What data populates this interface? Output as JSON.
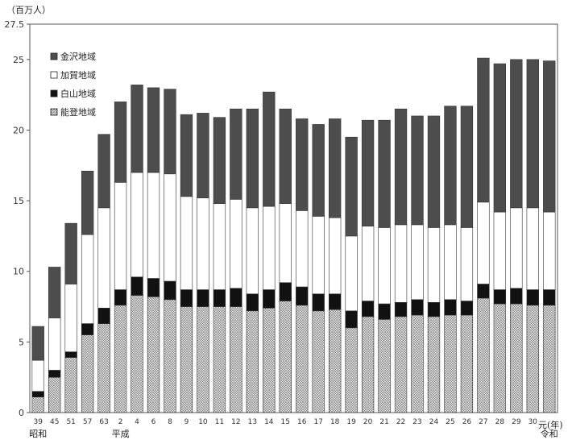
{
  "chart_data": {
    "type": "bar",
    "stacked": true,
    "y_unit_label": "（百万人）",
    "x_unit_label": "元(年)",
    "ylim": [
      0,
      27.5
    ],
    "y_ticks": [
      "0",
      "5",
      "10",
      "15",
      "20",
      "25",
      "27.5"
    ],
    "grid": false,
    "legend_position": "top-left",
    "era_labels": [
      {
        "text": "昭和",
        "category_index": 0
      },
      {
        "text": "平成",
        "category_index": 5
      },
      {
        "text": "令和",
        "category_index": 31
      }
    ],
    "categories": [
      "39",
      "45",
      "51",
      "57",
      "63",
      "2",
      "4",
      "6",
      "8",
      "9",
      "10",
      "11",
      "12",
      "13",
      "14",
      "15",
      "16",
      "17",
      "18",
      "19",
      "20",
      "21",
      "22",
      "23",
      "24",
      "25",
      "26",
      "27",
      "28",
      "29",
      "30",
      ""
    ],
    "series": [
      {
        "name": "能登地域",
        "color": "#bdbdbd",
        "pattern": "dots",
        "values": [
          1.1,
          2.5,
          3.9,
          5.5,
          6.3,
          7.6,
          8.3,
          8.2,
          8.0,
          7.5,
          7.5,
          7.5,
          7.5,
          7.2,
          7.4,
          7.9,
          7.6,
          7.2,
          7.3,
          6.0,
          6.8,
          6.6,
          6.8,
          6.9,
          6.8,
          6.9,
          6.9,
          8.1,
          7.7,
          7.7,
          7.6,
          7.6
        ]
      },
      {
        "name": "白山地域",
        "color": "#111111",
        "values": [
          0.4,
          0.5,
          0.4,
          0.8,
          1.1,
          1.1,
          1.3,
          1.3,
          1.3,
          1.2,
          1.2,
          1.2,
          1.3,
          1.2,
          1.3,
          1.3,
          1.3,
          1.2,
          1.1,
          1.2,
          1.1,
          1.1,
          1.0,
          1.1,
          1.0,
          1.1,
          1.0,
          1.0,
          1.0,
          1.1,
          1.1,
          1.1
        ]
      },
      {
        "name": "加賀地域",
        "color": "#ffffff",
        "values": [
          2.2,
          3.7,
          4.8,
          6.3,
          7.1,
          7.6,
          7.4,
          7.5,
          7.6,
          6.6,
          6.5,
          6.1,
          6.3,
          6.1,
          5.9,
          5.6,
          5.4,
          5.5,
          5.4,
          5.3,
          5.3,
          5.4,
          5.5,
          5.3,
          5.3,
          5.3,
          5.2,
          5.8,
          5.5,
          5.7,
          5.8,
          5.5
        ]
      },
      {
        "name": "金沢地域",
        "color": "#4d4d4d",
        "values": [
          2.4,
          3.6,
          4.3,
          4.5,
          5.2,
          5.7,
          6.2,
          6.0,
          6.0,
          5.8,
          6.0,
          6.1,
          6.4,
          7.0,
          8.1,
          6.7,
          6.5,
          6.5,
          7.0,
          7.0,
          7.5,
          7.6,
          8.2,
          7.7,
          7.9,
          8.4,
          8.6,
          10.2,
          10.5,
          10.5,
          10.5,
          10.7
        ]
      }
    ]
  }
}
